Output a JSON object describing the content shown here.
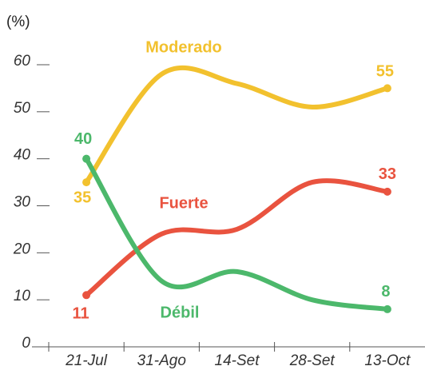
{
  "chart_data": {
    "type": "line",
    "unit_label": "(%)",
    "categories": [
      "21-Jul",
      "31-Ago",
      "14-Set",
      "28-Set",
      "13-Oct"
    ],
    "series": [
      {
        "name": "Moderado",
        "color": "#f2c12e",
        "values": [
          35,
          58,
          56,
          51,
          55
        ]
      },
      {
        "name": "Fuerte",
        "color": "#e9533f",
        "values": [
          11,
          24,
          25,
          35,
          33
        ]
      },
      {
        "name": "Débil",
        "color": "#4cb86b",
        "values": [
          40,
          14,
          16,
          10,
          8
        ]
      }
    ],
    "ylim": [
      0,
      60
    ],
    "yticks": [
      0,
      10,
      20,
      30,
      40,
      50,
      60
    ]
  }
}
